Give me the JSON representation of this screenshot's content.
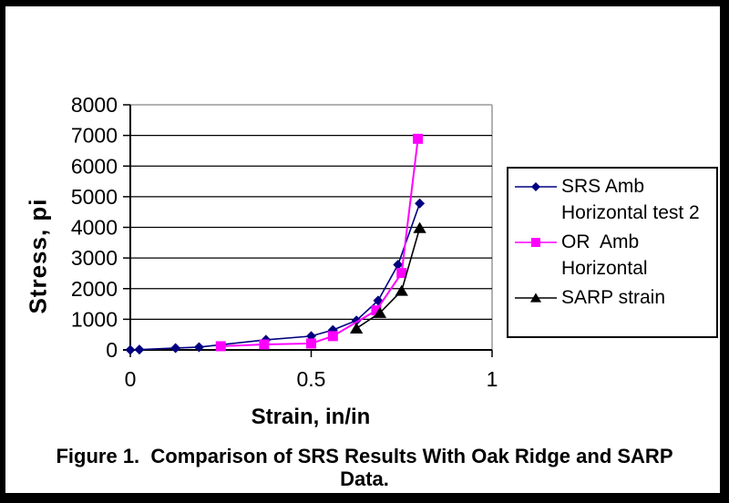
{
  "figure": {
    "caption_line1": "Figure 1.  Comparison of SRS Results With Oak Ridge and SARP",
    "caption_line2": "Data."
  },
  "chart_data": {
    "type": "line",
    "title": "",
    "xlabel": "Strain, in/in",
    "ylabel": "Stress, pi",
    "xlim": [
      0,
      1
    ],
    "ylim": [
      0,
      8000
    ],
    "x_ticks": [
      0,
      0.5,
      1
    ],
    "x_tick_labels": [
      "0",
      "0.5",
      "1"
    ],
    "y_ticks": [
      0,
      1000,
      2000,
      3000,
      4000,
      5000,
      6000,
      7000,
      8000
    ],
    "y_tick_labels": [
      "0",
      "1000",
      "2000",
      "3000",
      "4000",
      "5000",
      "6000",
      "7000",
      "8000"
    ],
    "grid": "horizontal",
    "legend_position": "right",
    "plot_border_color": "#999999",
    "series": [
      {
        "name": "SRS Amb Horizontal test 2",
        "marker": "diamond",
        "color": "#000080",
        "points": [
          [
            0,
            0
          ],
          [
            0.025,
            10
          ],
          [
            0.125,
            60
          ],
          [
            0.19,
            90
          ],
          [
            0.375,
            330
          ],
          [
            0.5,
            450
          ],
          [
            0.56,
            650
          ],
          [
            0.625,
            960
          ],
          [
            0.685,
            1610
          ],
          [
            0.74,
            2780
          ],
          [
            0.8,
            4780
          ]
        ]
      },
      {
        "name": "OR  Amb Horizontal",
        "marker": "square",
        "color": "#FF00FF",
        "points": [
          [
            0.25,
            120
          ],
          [
            0.37,
            180
          ],
          [
            0.5,
            210
          ],
          [
            0.56,
            450
          ],
          [
            0.68,
            1290
          ],
          [
            0.75,
            2510
          ],
          [
            0.795,
            6890
          ]
        ]
      },
      {
        "name": "SARP strain",
        "marker": "triangle",
        "color": "#000000",
        "points": [
          [
            0.625,
            700
          ],
          [
            0.69,
            1210
          ],
          [
            0.75,
            1930
          ],
          [
            0.8,
            3980
          ]
        ]
      }
    ]
  }
}
